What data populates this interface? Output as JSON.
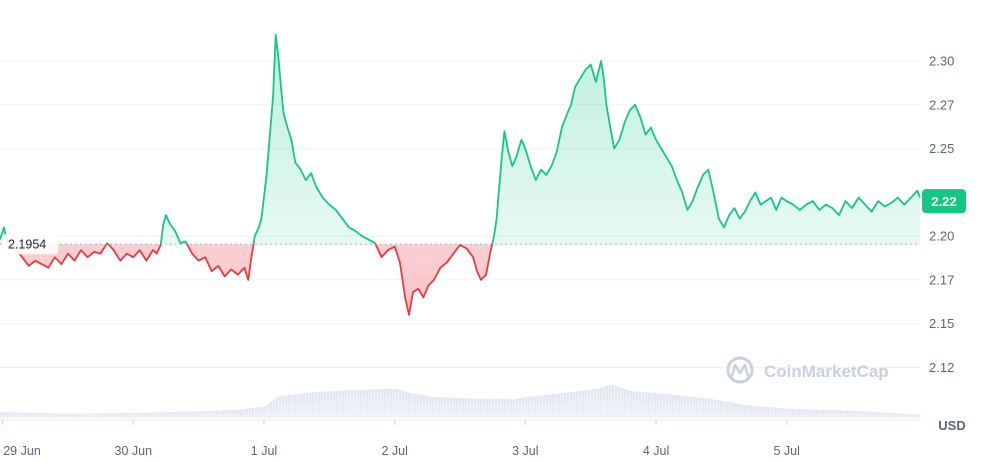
{
  "chart_data": {
    "type": "line",
    "currency_label": "USD",
    "watermark": "CoinMarketCap",
    "baseline": {
      "value": 2.1954,
      "label": "2.1954"
    },
    "current": {
      "value": 2.22,
      "label": "2.22"
    },
    "ylim": [
      2.095,
      2.332
    ],
    "y_ticks": [
      {
        "value": 2.3,
        "label": "2.30"
      },
      {
        "value": 2.275,
        "label": "2.27"
      },
      {
        "value": 2.25,
        "label": "2.25"
      },
      {
        "value": 2.2,
        "label": "2.20"
      },
      {
        "value": 2.175,
        "label": "2.17"
      },
      {
        "value": 2.15,
        "label": "2.15"
      },
      {
        "value": 2.125,
        "label": "2.12"
      }
    ],
    "x_ticks": [
      {
        "day": 0,
        "label": "29 Jun"
      },
      {
        "day": 1,
        "label": "30 Jun"
      },
      {
        "day": 2,
        "label": "1 Jul"
      },
      {
        "day": 3,
        "label": "2 Jul"
      },
      {
        "day": 4,
        "label": "3 Jul"
      },
      {
        "day": 5,
        "label": "4 Jul"
      },
      {
        "day": 6,
        "label": "5 Jul"
      }
    ],
    "xlim": [
      -0.02,
      7.02
    ],
    "grid": true,
    "colors": {
      "up": "#16c784",
      "down": "#ea3943",
      "volume": "#cfd6e4",
      "badge": "#16c784"
    },
    "series": [
      {
        "price": [
          [
            -0.02,
            2.198
          ],
          [
            0.01,
            2.205
          ],
          [
            0.03,
            2.198
          ],
          [
            0.06,
            2.195
          ],
          [
            0.1,
            2.193
          ],
          [
            0.15,
            2.188
          ],
          [
            0.2,
            2.183
          ],
          [
            0.25,
            2.186
          ],
          [
            0.3,
            2.184
          ],
          [
            0.35,
            2.182
          ],
          [
            0.4,
            2.188
          ],
          [
            0.45,
            2.184
          ],
          [
            0.5,
            2.19
          ],
          [
            0.55,
            2.186
          ],
          [
            0.6,
            2.192
          ],
          [
            0.65,
            2.188
          ],
          [
            0.7,
            2.191
          ],
          [
            0.75,
            2.19
          ],
          [
            0.8,
            2.196
          ],
          [
            0.85,
            2.192
          ],
          [
            0.9,
            2.186
          ],
          [
            0.95,
            2.19
          ],
          [
            1.0,
            2.188
          ],
          [
            1.05,
            2.192
          ],
          [
            1.1,
            2.186
          ],
          [
            1.15,
            2.192
          ],
          [
            1.18,
            2.19
          ],
          [
            1.21,
            2.195
          ],
          [
            1.23,
            2.207
          ],
          [
            1.25,
            2.212
          ],
          [
            1.28,
            2.207
          ],
          [
            1.32,
            2.203
          ],
          [
            1.36,
            2.196
          ],
          [
            1.4,
            2.197
          ],
          [
            1.45,
            2.19
          ],
          [
            1.5,
            2.186
          ],
          [
            1.55,
            2.188
          ],
          [
            1.6,
            2.18
          ],
          [
            1.65,
            2.183
          ],
          [
            1.7,
            2.177
          ],
          [
            1.75,
            2.181
          ],
          [
            1.8,
            2.178
          ],
          [
            1.85,
            2.182
          ],
          [
            1.88,
            2.175
          ],
          [
            1.9,
            2.186
          ],
          [
            1.93,
            2.2
          ],
          [
            1.96,
            2.205
          ],
          [
            1.98,
            2.21
          ],
          [
            2.02,
            2.235
          ],
          [
            2.05,
            2.262
          ],
          [
            2.07,
            2.28
          ],
          [
            2.09,
            2.315
          ],
          [
            2.11,
            2.302
          ],
          [
            2.13,
            2.285
          ],
          [
            2.15,
            2.27
          ],
          [
            2.18,
            2.262
          ],
          [
            2.21,
            2.255
          ],
          [
            2.24,
            2.242
          ],
          [
            2.28,
            2.238
          ],
          [
            2.32,
            2.232
          ],
          [
            2.36,
            2.236
          ],
          [
            2.4,
            2.228
          ],
          [
            2.45,
            2.222
          ],
          [
            2.5,
            2.218
          ],
          [
            2.55,
            2.215
          ],
          [
            2.6,
            2.21
          ],
          [
            2.65,
            2.205
          ],
          [
            2.7,
            2.203
          ],
          [
            2.75,
            2.2
          ],
          [
            2.8,
            2.198
          ],
          [
            2.85,
            2.196
          ],
          [
            2.9,
            2.188
          ],
          [
            2.95,
            2.192
          ],
          [
            3.0,
            2.194
          ],
          [
            3.04,
            2.185
          ],
          [
            3.08,
            2.165
          ],
          [
            3.11,
            2.155
          ],
          [
            3.14,
            2.168
          ],
          [
            3.18,
            2.17
          ],
          [
            3.22,
            2.165
          ],
          [
            3.26,
            2.172
          ],
          [
            3.3,
            2.175
          ],
          [
            3.35,
            2.182
          ],
          [
            3.4,
            2.185
          ],
          [
            3.45,
            2.19
          ],
          [
            3.5,
            2.195
          ],
          [
            3.55,
            2.193
          ],
          [
            3.6,
            2.188
          ],
          [
            3.63,
            2.18
          ],
          [
            3.66,
            2.175
          ],
          [
            3.7,
            2.178
          ],
          [
            3.73,
            2.19
          ],
          [
            3.76,
            2.2
          ],
          [
            3.78,
            2.21
          ],
          [
            3.8,
            2.228
          ],
          [
            3.82,
            2.245
          ],
          [
            3.84,
            2.26
          ],
          [
            3.87,
            2.248
          ],
          [
            3.9,
            2.24
          ],
          [
            3.93,
            2.245
          ],
          [
            3.97,
            2.255
          ],
          [
            4.0,
            2.25
          ],
          [
            4.04,
            2.24
          ],
          [
            4.08,
            2.232
          ],
          [
            4.12,
            2.238
          ],
          [
            4.16,
            2.235
          ],
          [
            4.2,
            2.24
          ],
          [
            4.24,
            2.248
          ],
          [
            4.28,
            2.262
          ],
          [
            4.32,
            2.27
          ],
          [
            4.35,
            2.275
          ],
          [
            4.38,
            2.285
          ],
          [
            4.42,
            2.29
          ],
          [
            4.46,
            2.295
          ],
          [
            4.5,
            2.298
          ],
          [
            4.54,
            2.288
          ],
          [
            4.58,
            2.3
          ],
          [
            4.6,
            2.29
          ],
          [
            4.62,
            2.275
          ],
          [
            4.65,
            2.262
          ],
          [
            4.68,
            2.25
          ],
          [
            4.72,
            2.255
          ],
          [
            4.76,
            2.265
          ],
          [
            4.8,
            2.272
          ],
          [
            4.84,
            2.275
          ],
          [
            4.88,
            2.268
          ],
          [
            4.92,
            2.258
          ],
          [
            4.96,
            2.262
          ],
          [
            5.0,
            2.255
          ],
          [
            5.04,
            2.25
          ],
          [
            5.08,
            2.245
          ],
          [
            5.12,
            2.24
          ],
          [
            5.16,
            2.232
          ],
          [
            5.2,
            2.225
          ],
          [
            5.24,
            2.215
          ],
          [
            5.28,
            2.22
          ],
          [
            5.32,
            2.228
          ],
          [
            5.36,
            2.235
          ],
          [
            5.4,
            2.238
          ],
          [
            5.44,
            2.225
          ],
          [
            5.48,
            2.21
          ],
          [
            5.52,
            2.205
          ],
          [
            5.56,
            2.212
          ],
          [
            5.6,
            2.216
          ],
          [
            5.64,
            2.21
          ],
          [
            5.68,
            2.214
          ],
          [
            5.72,
            2.22
          ],
          [
            5.76,
            2.225
          ],
          [
            5.8,
            2.218
          ],
          [
            5.84,
            2.22
          ],
          [
            5.88,
            2.222
          ],
          [
            5.92,
            2.215
          ],
          [
            5.96,
            2.222
          ],
          [
            6.0,
            2.22
          ],
          [
            6.05,
            2.218
          ],
          [
            6.1,
            2.215
          ],
          [
            6.15,
            2.218
          ],
          [
            6.2,
            2.22
          ],
          [
            6.25,
            2.215
          ],
          [
            6.3,
            2.218
          ],
          [
            6.35,
            2.216
          ],
          [
            6.4,
            2.212
          ],
          [
            6.45,
            2.22
          ],
          [
            6.5,
            2.216
          ],
          [
            6.55,
            2.222
          ],
          [
            6.6,
            2.218
          ],
          [
            6.65,
            2.214
          ],
          [
            6.7,
            2.22
          ],
          [
            6.75,
            2.217
          ],
          [
            6.8,
            2.219
          ],
          [
            6.85,
            2.222
          ],
          [
            6.9,
            2.218
          ],
          [
            6.95,
            2.222
          ],
          [
            7.0,
            2.226
          ],
          [
            7.02,
            2.222
          ]
        ],
        "volume_relative": [
          [
            -0.02,
            0.14
          ],
          [
            0.5,
            0.1
          ],
          [
            1.0,
            0.12
          ],
          [
            1.5,
            0.16
          ],
          [
            1.8,
            0.2
          ],
          [
            2.0,
            0.28
          ],
          [
            2.1,
            0.52
          ],
          [
            2.4,
            0.62
          ],
          [
            2.8,
            0.68
          ],
          [
            3.0,
            0.7
          ],
          [
            3.1,
            0.6
          ],
          [
            3.3,
            0.5
          ],
          [
            3.6,
            0.46
          ],
          [
            3.9,
            0.44
          ],
          [
            4.0,
            0.5
          ],
          [
            4.3,
            0.6
          ],
          [
            4.55,
            0.7
          ],
          [
            4.65,
            0.8
          ],
          [
            4.8,
            0.64
          ],
          [
            5.1,
            0.56
          ],
          [
            5.4,
            0.46
          ],
          [
            5.7,
            0.3
          ],
          [
            6.0,
            0.22
          ],
          [
            6.5,
            0.17
          ],
          [
            7.02,
            0.08
          ]
        ]
      }
    ]
  }
}
